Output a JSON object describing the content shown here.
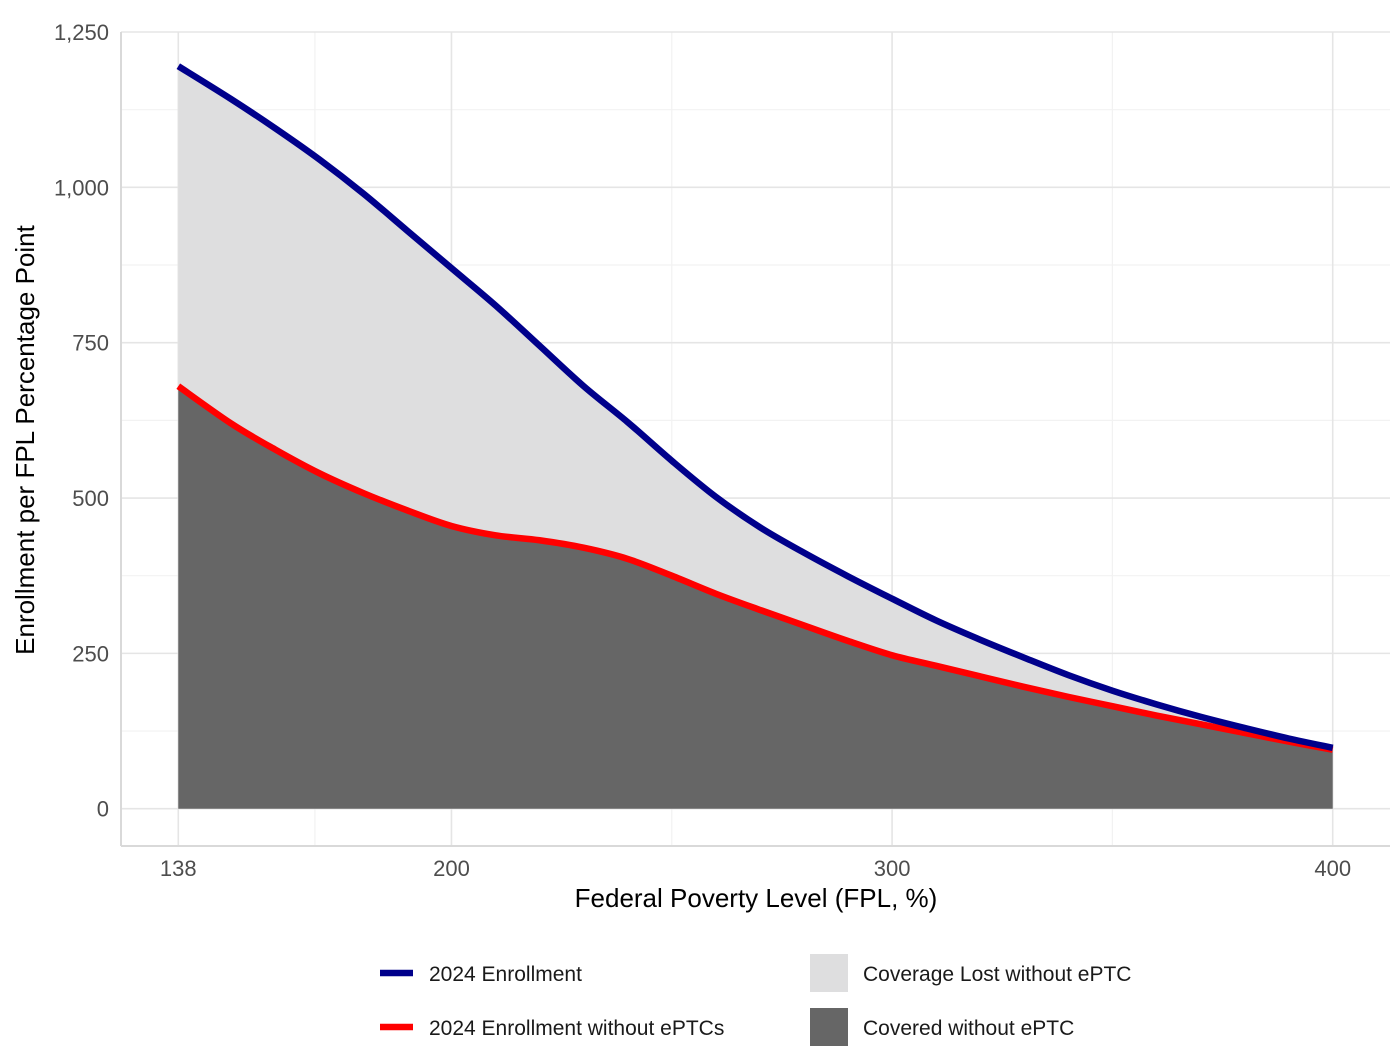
{
  "chart_data": {
    "type": "area",
    "title": "",
    "xlabel": "Federal Poverty Level (FPL, %)",
    "ylabel": "Enrollment per FPL Percentage Point",
    "xlim": [
      125,
      413
    ],
    "ylim": [
      -60,
      1250
    ],
    "x_ticks": [
      138,
      200,
      300,
      400
    ],
    "x_tick_labels": [
      "138",
      "200",
      "300",
      "400"
    ],
    "x_minor_ticks": [
      169,
      250,
      350
    ],
    "y_ticks": [
      0,
      250,
      500,
      750,
      1000,
      1250
    ],
    "y_tick_labels": [
      "0",
      "250",
      "500",
      "750",
      "1,000",
      "1,250"
    ],
    "y_minor_ticks": [
      125,
      375,
      625,
      875,
      1125
    ],
    "grid": true,
    "legend_position": "bottom",
    "series": [
      {
        "name": "2024 Enrollment",
        "kind": "line",
        "color": "#00008B",
        "x": [
          138,
          150,
          160,
          170,
          180,
          190,
          200,
          210,
          220,
          230,
          240,
          250,
          260,
          270,
          280,
          290,
          300,
          310,
          320,
          330,
          340,
          350,
          360,
          370,
          380,
          390,
          400
        ],
        "y": [
          1195,
          1142,
          1095,
          1045,
          990,
          930,
          870,
          810,
          745,
          680,
          622,
          560,
          502,
          453,
          412,
          374,
          338,
          303,
          272,
          243,
          215,
          190,
          168,
          148,
          130,
          113,
          98
        ]
      },
      {
        "name": "2024 Enrollment without ePTCs",
        "kind": "line",
        "color": "#FF0000",
        "x": [
          138,
          150,
          160,
          170,
          180,
          190,
          200,
          210,
          220,
          230,
          240,
          250,
          260,
          270,
          280,
          290,
          300,
          310,
          320,
          330,
          340,
          350,
          360,
          370,
          380,
          390,
          400
        ],
        "y": [
          680,
          620,
          578,
          540,
          508,
          480,
          455,
          440,
          432,
          420,
          402,
          375,
          346,
          320,
          295,
          270,
          247,
          230,
          213,
          196,
          180,
          165,
          150,
          136,
          122,
          108,
          95
        ]
      }
    ],
    "areas": [
      {
        "name": "Coverage Lost without ePTC",
        "color": "#DEDEDF",
        "between": [
          "2024 Enrollment without ePTCs",
          "2024 Enrollment"
        ]
      },
      {
        "name": "Covered without ePTC",
        "color": "#666666",
        "between": [
          "zero",
          "2024 Enrollment without ePTCs"
        ]
      }
    ],
    "legend": [
      {
        "label": "2024 Enrollment",
        "type": "line",
        "color": "#00008B"
      },
      {
        "label": "Coverage Lost without ePTC",
        "type": "fill",
        "color": "#DEDEDF"
      },
      {
        "label": "2024 Enrollment without ePTCs",
        "type": "line",
        "color": "#FF0000"
      },
      {
        "label": "Covered without ePTC",
        "type": "fill",
        "color": "#666666"
      }
    ]
  }
}
